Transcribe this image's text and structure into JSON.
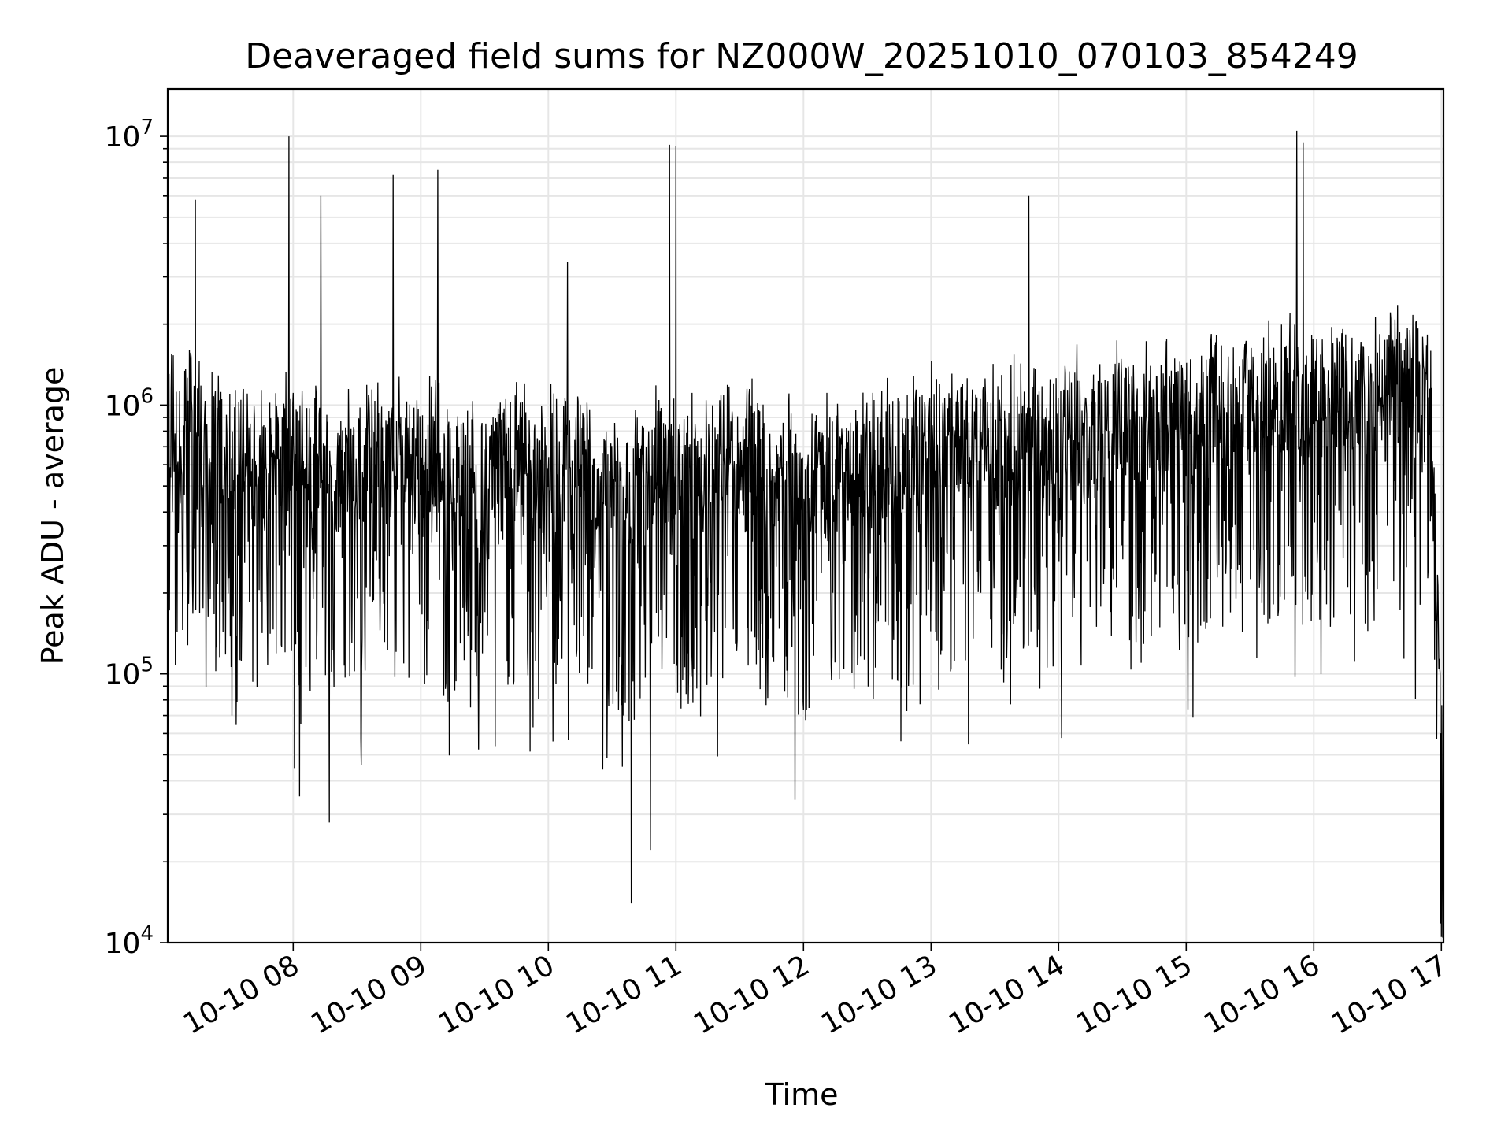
{
  "chart_data": {
    "type": "line",
    "title": "Deaveraged field sums for NZ000W_20251010_070103_854249",
    "xlabel": "Time",
    "ylabel": "Peak ADU - average",
    "y_scale": "log",
    "ylim": [
      10000,
      15000000
    ],
    "xlim": [
      "2025-10-10 07:01",
      "2025-10-10 17:01"
    ],
    "x_tick_labels": [
      "10-10 08",
      "10-10 09",
      "10-10 10",
      "10-10 11",
      "10-10 12",
      "10-10 13",
      "10-10 14",
      "10-10 15",
      "10-10 16",
      "10-10 17"
    ],
    "y_tick_labels": [
      {
        "base": "10",
        "exp": "4"
      },
      {
        "base": "10",
        "exp": "5"
      },
      {
        "base": "10",
        "exp": "6"
      },
      {
        "base": "10",
        "exp": "7"
      }
    ],
    "grid": true,
    "line_color": "#000000",
    "grid_color": "#e6e6e6",
    "series": [
      {
        "x": [
          "2025-10-10 07:01",
          "2025-10-10 07:07",
          "2025-10-10 07:13",
          "2025-10-10 07:19",
          "2025-10-10 07:25",
          "2025-10-10 07:31",
          "2025-10-10 07:37",
          "2025-10-10 07:43",
          "2025-10-10 07:49",
          "2025-10-10 07:55",
          "2025-10-10 08:01",
          "2025-10-10 08:07",
          "2025-10-10 08:13",
          "2025-10-10 08:19",
          "2025-10-10 08:25",
          "2025-10-10 08:31",
          "2025-10-10 08:37",
          "2025-10-10 08:43",
          "2025-10-10 08:49",
          "2025-10-10 08:55",
          "2025-10-10 09:01",
          "2025-10-10 09:07",
          "2025-10-10 09:13",
          "2025-10-10 09:19",
          "2025-10-10 09:25",
          "2025-10-10 09:31",
          "2025-10-10 09:37",
          "2025-10-10 09:43",
          "2025-10-10 09:49",
          "2025-10-10 09:55",
          "2025-10-10 10:01",
          "2025-10-10 10:07",
          "2025-10-10 10:13",
          "2025-10-10 10:19",
          "2025-10-10 10:25",
          "2025-10-10 10:31",
          "2025-10-10 10:37",
          "2025-10-10 10:43",
          "2025-10-10 10:49",
          "2025-10-10 10:55",
          "2025-10-10 11:01",
          "2025-10-10 11:07",
          "2025-10-10 11:13",
          "2025-10-10 11:19",
          "2025-10-10 11:25",
          "2025-10-10 11:31",
          "2025-10-10 11:37",
          "2025-10-10 11:43",
          "2025-10-10 11:49",
          "2025-10-10 11:55",
          "2025-10-10 12:01",
          "2025-10-10 12:07",
          "2025-10-10 12:13",
          "2025-10-10 12:19",
          "2025-10-10 12:25",
          "2025-10-10 12:31",
          "2025-10-10 12:37",
          "2025-10-10 12:43",
          "2025-10-10 12:49",
          "2025-10-10 12:55",
          "2025-10-10 13:01",
          "2025-10-10 13:07",
          "2025-10-10 13:13",
          "2025-10-10 13:19",
          "2025-10-10 13:25",
          "2025-10-10 13:31",
          "2025-10-10 13:37",
          "2025-10-10 13:43",
          "2025-10-10 13:49",
          "2025-10-10 13:55",
          "2025-10-10 14:01",
          "2025-10-10 14:07",
          "2025-10-10 14:13",
          "2025-10-10 14:19",
          "2025-10-10 14:25",
          "2025-10-10 14:31",
          "2025-10-10 14:37",
          "2025-10-10 14:43",
          "2025-10-10 14:49",
          "2025-10-10 14:55",
          "2025-10-10 15:01",
          "2025-10-10 15:07",
          "2025-10-10 15:13",
          "2025-10-10 15:19",
          "2025-10-10 15:25",
          "2025-10-10 15:31",
          "2025-10-10 15:37",
          "2025-10-10 15:43",
          "2025-10-10 15:49",
          "2025-10-10 15:55",
          "2025-10-10 16:01",
          "2025-10-10 16:07",
          "2025-10-10 16:13",
          "2025-10-10 16:19",
          "2025-10-10 16:25",
          "2025-10-10 16:31",
          "2025-10-10 16:37",
          "2025-10-10 16:43",
          "2025-10-10 16:49",
          "2025-10-10 16:55",
          "2025-10-10 17:01"
        ],
        "y": [
          900000,
          700000,
          1200000,
          600000,
          750000,
          650000,
          800000,
          500000,
          700000,
          650000,
          600000,
          550000,
          700000,
          500000,
          650000,
          600000,
          700000,
          600000,
          650000,
          550000,
          600000,
          700000,
          500000,
          650000,
          600000,
          550000,
          700000,
          600000,
          650000,
          500000,
          600000,
          550000,
          650000,
          600000,
          500000,
          550000,
          450000,
          500000,
          600000,
          550000,
          500000,
          600000,
          550000,
          500000,
          600000,
          550000,
          650000,
          500000,
          600000,
          550000,
          450000,
          500000,
          550000,
          500000,
          600000,
          550000,
          600000,
          650000,
          600000,
          700000,
          700000,
          650000,
          750000,
          700000,
          800000,
          700000,
          750000,
          800000,
          700000,
          750000,
          750000,
          800000,
          850000,
          800000,
          850000,
          900000,
          800000,
          850000,
          900000,
          850000,
          900000,
          950000,
          1000000,
          950000,
          1000000,
          1050000,
          1100000,
          1000000,
          1100000,
          1050000,
          1100000,
          1050000,
          1150000,
          1100000,
          1050000,
          1150000,
          1100000,
          1200000,
          1100000,
          1050000,
          30000
        ]
      }
    ],
    "spikes": [
      {
        "x": "2025-10-10 07:14",
        "y": 5800000
      },
      {
        "x": "2025-10-10 07:58",
        "y": 10000000
      },
      {
        "x": "2025-10-10 08:13",
        "y": 6000000
      },
      {
        "x": "2025-10-10 08:47",
        "y": 7200000
      },
      {
        "x": "2025-10-10 09:08",
        "y": 7500000
      },
      {
        "x": "2025-10-10 10:09",
        "y": 3400000
      },
      {
        "x": "2025-10-10 10:57",
        "y": 9300000
      },
      {
        "x": "2025-10-10 11:00",
        "y": 9200000
      },
      {
        "x": "2025-10-10 13:46",
        "y": 6000000
      },
      {
        "x": "2025-10-10 15:52",
        "y": 10500000
      },
      {
        "x": "2025-10-10 15:55",
        "y": 9500000
      }
    ],
    "dips": [
      {
        "x": "2025-10-10 08:03",
        "y": 35000
      },
      {
        "x": "2025-10-10 08:17",
        "y": 28000
      },
      {
        "x": "2025-10-10 10:39",
        "y": 14000
      },
      {
        "x": "2025-10-10 10:48",
        "y": 22000
      },
      {
        "x": "2025-10-10 11:56",
        "y": 34000
      },
      {
        "x": "2025-10-10 17:01",
        "y": 20000
      }
    ]
  }
}
